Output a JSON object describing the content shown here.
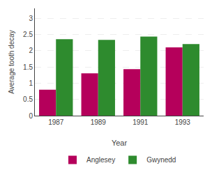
{
  "chart_data": {
    "type": "bar",
    "categories": [
      "1987",
      "1989",
      "1991",
      "1993"
    ],
    "series": [
      {
        "name": "Anglesey",
        "color": "#b5005b",
        "values": [
          0.8,
          1.3,
          1.43,
          2.1
        ]
      },
      {
        "name": "Gwynedd",
        "color": "#2e8b2e",
        "values": [
          2.35,
          2.33,
          2.43,
          2.2
        ]
      }
    ],
    "xlabel": "Year",
    "ylabel": "Average tooth decay",
    "ylim": [
      0,
      3.3
    ],
    "yticks": [
      0,
      0.5,
      1,
      1.5,
      2,
      2.5,
      3
    ],
    "grid": true,
    "legend": "bottom"
  }
}
